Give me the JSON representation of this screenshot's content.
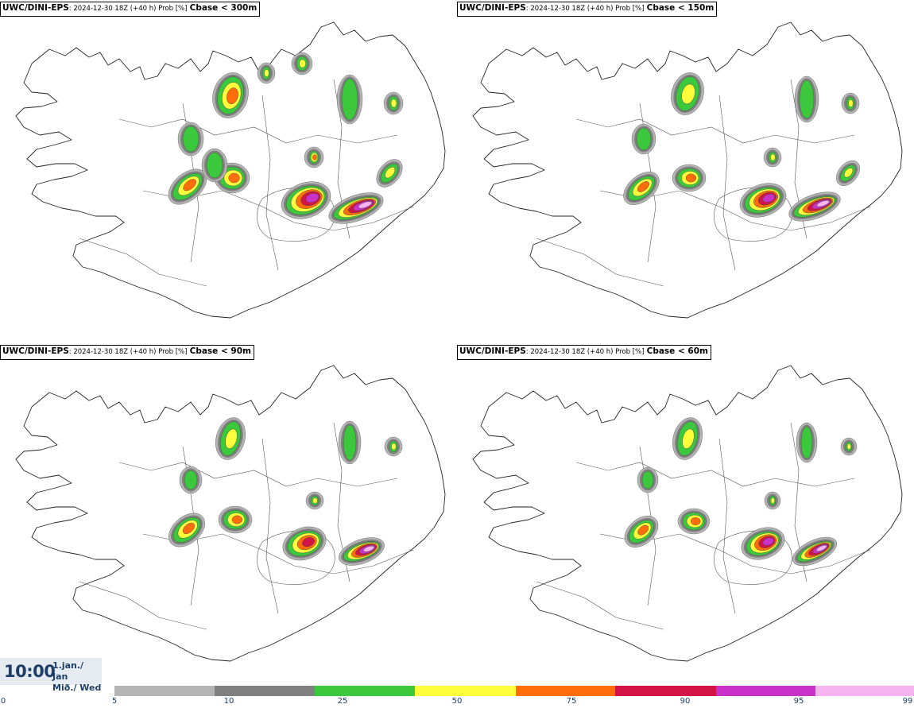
{
  "panels": [
    {
      "model": "UWC/DINI-EPS",
      "run": ": 2024-12-30 18Z (+40 h) Prob [%]",
      "cbase": "Cbase < 300m"
    },
    {
      "model": "UWC/DINI-EPS",
      "run": ": 2024-12-30 18Z (+40 h) Prob [%]",
      "cbase": "Cbase < 150m"
    },
    {
      "model": "UWC/DINI-EPS",
      "run": ": 2024-12-30 18Z (+40 h) Prob [%]",
      "cbase": "Cbase < 90m"
    },
    {
      "model": "UWC/DINI-EPS",
      "run": ": 2024-12-30 18Z (+40 h) Prob [%]",
      "cbase": "Cbase < 60m"
    }
  ],
  "valid_time": {
    "time": "10:00",
    "date_line1": "1.jan./ Jan",
    "date_line2": "Mið./ Wed"
  },
  "legend": {
    "ticks": [
      "0",
      "5",
      "10",
      "25",
      "50",
      "75",
      "90",
      "95",
      "99"
    ],
    "colors": [
      "#b4b4b4",
      "#808080",
      "#3cc83c",
      "#ffff3c",
      "#ff6e0a",
      "#d21446",
      "#c832c8",
      "#f5b4f0"
    ]
  },
  "map": {
    "region": "Iceland",
    "outline_color": "#222222",
    "inland_line_color": "#555555"
  }
}
